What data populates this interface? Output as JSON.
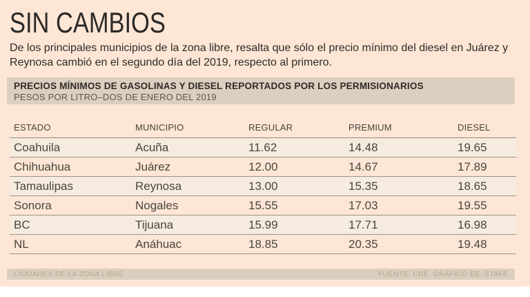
{
  "page_title": "SIN CAMBIOS",
  "intro": "De los principales municipios de la zona libre, resalta que sólo el precio mínimo del diesel en Juárez y Reynosa cambió en el segundo día del 2019, respecto al primero.",
  "chart_data": {
    "type": "table",
    "title": "PRECIOS MÍNIMOS DE GASOLINAS Y DIESEL REPORTADOS POR LOS PERMISIONARIOS",
    "subtitle": "PESOS POR LITRO–DOS DE ENERO DEL 2019",
    "columns": [
      "ESTADO",
      "MUNICIPIO",
      "REGULAR",
      "PREMIUM",
      "DIESEL"
    ],
    "rows": [
      [
        "Coahuila",
        "Acuña",
        "11.62",
        "14.48",
        "19.65"
      ],
      [
        "Chihuahua",
        "Juárez",
        "12.00",
        "14.67",
        "17.89"
      ],
      [
        "Tamaulipas",
        "Reynosa",
        "13.00",
        "15.35",
        "18.65"
      ],
      [
        "Sonora",
        "Nogales",
        "15.55",
        "17.03",
        "19.55"
      ],
      [
        "BC",
        "Tijuana",
        "15.99",
        "17.71",
        "16.98"
      ],
      [
        "NL",
        "Anáhuac",
        "18.85",
        "20.35",
        "19.48"
      ]
    ],
    "layout": {
      "striped_rows": [
        0,
        2,
        4
      ],
      "grid": "horizontal-rules"
    }
  },
  "footer": {
    "left": "CIUDADES DE LA ZONA LIBRE",
    "right": "FUENTE: CRE. GRÁFICO EE: STAFF."
  },
  "colors": {
    "background": "#fde6d5",
    "bar": "#dccfbf",
    "stripe": "#f5ecdf",
    "rule": "#9c9384",
    "body_text": "#4b453e",
    "footer_text": "#b3a691"
  }
}
